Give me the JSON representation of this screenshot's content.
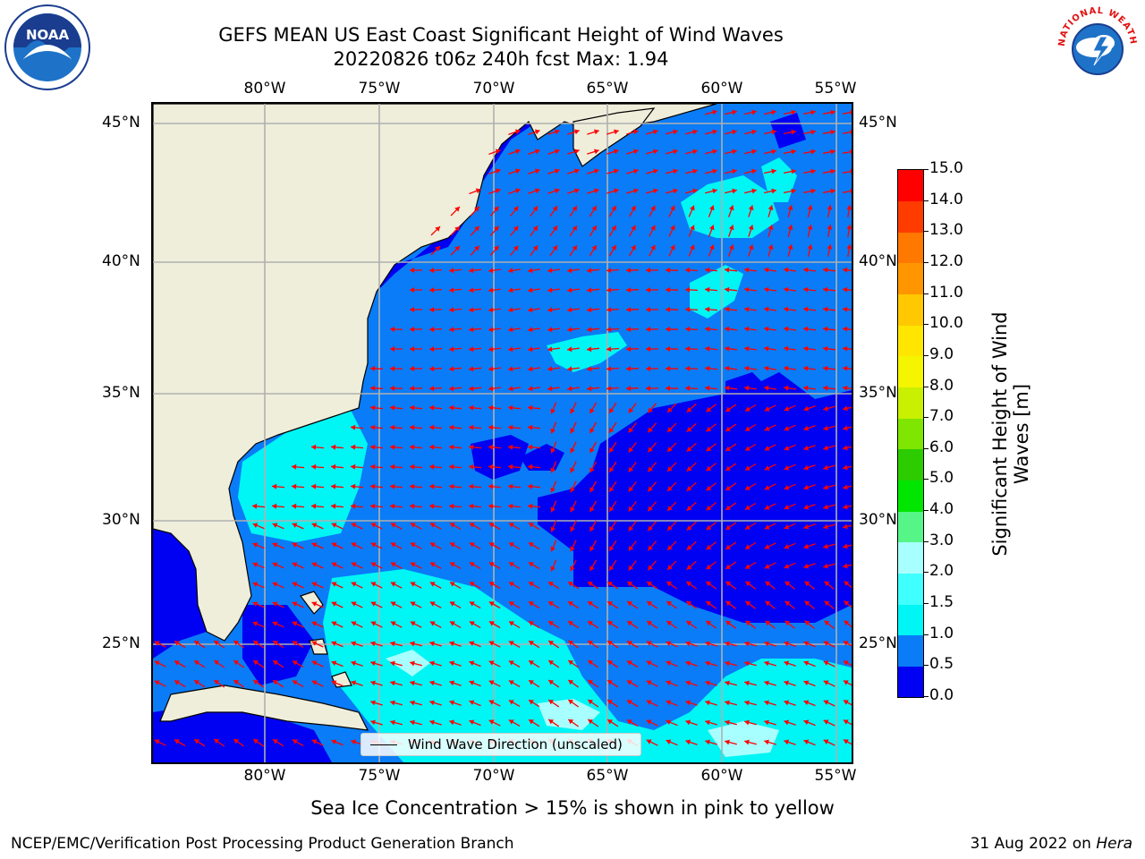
{
  "header": {
    "title_line1": "GEFS MEAN US East Coast Significant Height of Wind Waves",
    "title_line2": "20220826 t06z 240h fcst   Max: 1.94"
  },
  "axes": {
    "lon_labels": [
      "80°W",
      "75°W",
      "70°W",
      "65°W",
      "60°W",
      "55°W"
    ],
    "lat_labels": [
      "45°N",
      "40°N",
      "35°N",
      "30°N",
      "25°N"
    ]
  },
  "legend": {
    "label": "Wind Wave Direction (unscaled)"
  },
  "colorbar": {
    "label": "Significant Height of Wind Waves [m]",
    "ticks": [
      "0.0",
      "0.5",
      "1.0",
      "1.5",
      "2.0",
      "3.0",
      "4.0",
      "5.0",
      "6.0",
      "7.0",
      "8.0",
      "9.0",
      "10.0",
      "11.0",
      "12.0",
      "13.0",
      "14.0",
      "15.0"
    ],
    "colors": [
      "#0000f2",
      "#0a7cf7",
      "#00f5f5",
      "#40ffff",
      "#a8ffff",
      "#55f588",
      "#00e600",
      "#2ccc00",
      "#7ee600",
      "#c8f000",
      "#f5f500",
      "#ffe600",
      "#ffc800",
      "#ff9600",
      "#ff7800",
      "#ff3c00",
      "#ff0000"
    ]
  },
  "footnote": "Sea Ice Concentration > 15% is shown in pink to yellow",
  "footer": {
    "left": "NCEP/EMC/Verification Post Processing Product Generation Branch",
    "right_date": "31 Aug 2022 on",
    "right_host": "Hera"
  },
  "logos": {
    "left": "NOAA",
    "right": "NATIONAL WEATHER SERVICE"
  },
  "colors": {
    "land": "#efeedb",
    "arrow": "#ff0000",
    "grid": "#b0b0b0"
  }
}
